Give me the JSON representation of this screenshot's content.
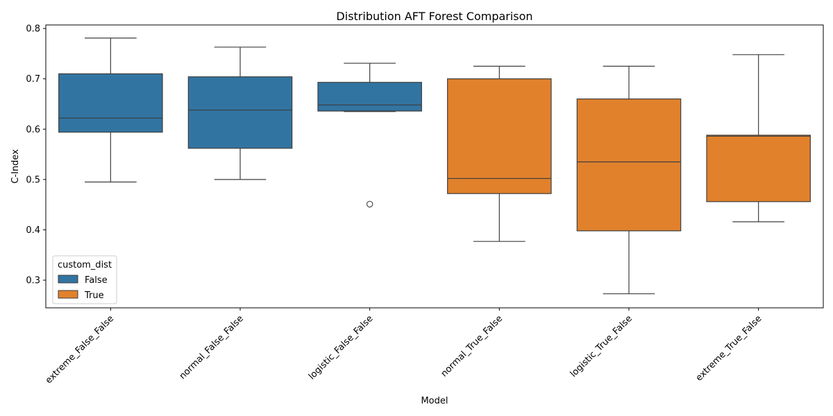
{
  "chart_data": {
    "type": "box",
    "title": "Distribution AFT Forest Comparison",
    "xlabel": "Model",
    "ylabel": "C-Index",
    "ylim": [
      0.245,
      0.807
    ],
    "yticks": [
      0.3,
      0.4,
      0.5,
      0.6,
      0.7,
      0.8
    ],
    "ytick_labels": [
      "0.3",
      "0.4",
      "0.5",
      "0.6",
      "0.7",
      "0.8"
    ],
    "categories": [
      "extreme_False_False",
      "normal_False_False",
      "logistic_False_False",
      "normal_True_False",
      "logistic_True_False",
      "extreme_True_False"
    ],
    "legend": {
      "title": "custom_dist",
      "position": "lower-left",
      "entries": [
        {
          "label": "False",
          "color": "#1f77b4"
        },
        {
          "label": "True",
          "color": "#ff7f0e"
        }
      ]
    },
    "series": [
      {
        "name": "False",
        "color": "#3274a1"
      },
      {
        "name": "True",
        "color": "#e1812c"
      }
    ],
    "boxes": [
      {
        "category": "extreme_False_False",
        "group": "False",
        "whisker_low": 0.495,
        "q1": 0.594,
        "median": 0.622,
        "q3": 0.71,
        "whisker_high": 0.781,
        "outliers": []
      },
      {
        "category": "normal_False_False",
        "group": "False",
        "whisker_low": 0.5,
        "q1": 0.562,
        "median": 0.638,
        "q3": 0.704,
        "whisker_high": 0.763,
        "outliers": []
      },
      {
        "category": "logistic_False_False",
        "group": "False",
        "whisker_low": 0.635,
        "q1": 0.636,
        "median": 0.648,
        "q3": 0.693,
        "whisker_high": 0.731,
        "outliers": [
          0.451
        ]
      },
      {
        "category": "normal_True_False",
        "group": "True",
        "whisker_low": 0.377,
        "q1": 0.472,
        "median": 0.502,
        "q3": 0.7,
        "whisker_high": 0.725,
        "outliers": []
      },
      {
        "category": "logistic_True_False",
        "group": "True",
        "whisker_low": 0.273,
        "q1": 0.398,
        "median": 0.535,
        "q3": 0.66,
        "whisker_high": 0.725,
        "outliers": []
      },
      {
        "category": "extreme_True_False",
        "group": "True",
        "whisker_low": 0.416,
        "q1": 0.456,
        "median": 0.586,
        "q3": 0.588,
        "whisker_high": 0.748,
        "outliers": []
      }
    ],
    "grid": false
  }
}
